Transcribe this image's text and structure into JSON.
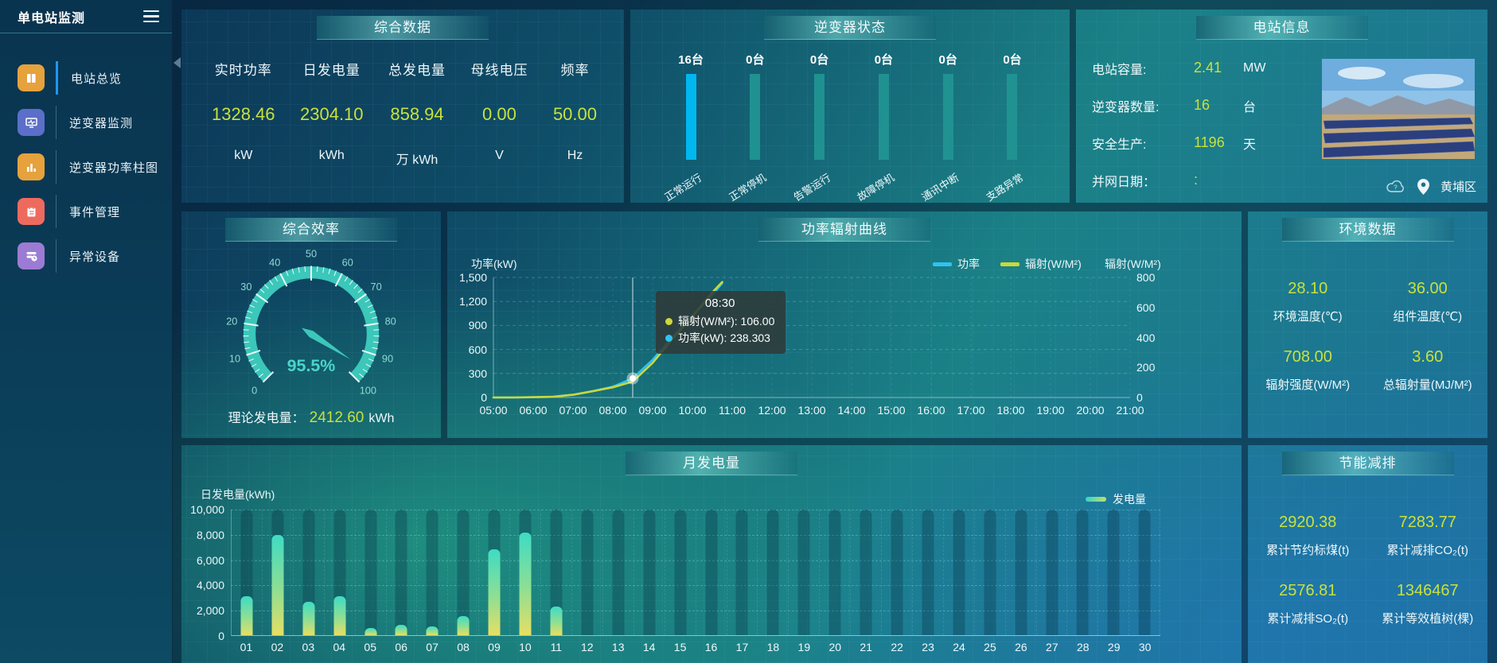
{
  "sidebar": {
    "title": "单电站监测",
    "items": [
      {
        "label": "电站总览",
        "icon": "book-icon",
        "icon_color": "#e6a23c",
        "active": true
      },
      {
        "label": "逆变器监测",
        "icon": "monitor-icon",
        "icon_color": "#5b6fc9",
        "active": false
      },
      {
        "label": "逆变器功率柱图",
        "icon": "bar-chart-icon",
        "icon_color": "#e6a23c",
        "active": false
      },
      {
        "label": "事件管理",
        "icon": "notebook-icon",
        "icon_color": "#ef6a5e",
        "active": false
      },
      {
        "label": "异常设备",
        "icon": "device-alert-icon",
        "icon_color": "#9c7bd4",
        "active": false
      }
    ]
  },
  "overview": {
    "title": "综合数据",
    "metrics": [
      {
        "label": "实时功率",
        "value": "1328.46",
        "unit": "kW"
      },
      {
        "label": "日发电量",
        "value": "2304.10",
        "unit": "kWh"
      },
      {
        "label": "总发电量",
        "value": "858.94",
        "unit": "万 kWh"
      },
      {
        "label": "母线电压",
        "value": "0.00",
        "unit": "V"
      },
      {
        "label": "频率",
        "value": "50.00",
        "unit": "Hz"
      }
    ]
  },
  "inverter_status": {
    "title": "逆变器状态",
    "items": [
      {
        "count": "16台",
        "label": "正常运行",
        "active": true
      },
      {
        "count": "0台",
        "label": "正常停机",
        "active": false
      },
      {
        "count": "0台",
        "label": "告警运行",
        "active": false
      },
      {
        "count": "0台",
        "label": "故障停机",
        "active": false
      },
      {
        "count": "0台",
        "label": "通讯中断",
        "active": false
      },
      {
        "count": "0台",
        "label": "支路异常",
        "active": false
      }
    ]
  },
  "station_info": {
    "title": "电站信息",
    "rows": [
      {
        "label": "电站容量:",
        "value": "2.41",
        "unit": "MW"
      },
      {
        "label": "逆变器数量:",
        "value": "16",
        "unit": "台"
      },
      {
        "label": "安全生产:",
        "value": "1196",
        "unit": "天"
      },
      {
        "label": "并网日期：",
        "value": ":",
        "unit": ""
      }
    ],
    "location": "黄埔区"
  },
  "efficiency": {
    "title": "综合效率",
    "footer_label": "理论发电量：",
    "footer_value": "2412.60",
    "footer_unit": "kWh"
  },
  "power_chart": {
    "title": "功率辐射曲线"
  },
  "env": {
    "title": "环境数据",
    "cells": [
      {
        "value": "28.10",
        "label": "环境温度(℃)"
      },
      {
        "value": "36.00",
        "label": "组件温度(℃)"
      },
      {
        "value": "708.00",
        "label": "辐射强度(W/M²)"
      },
      {
        "value": "3.60",
        "label": "总辐射量(MJ/M²)"
      }
    ]
  },
  "monthly": {
    "title": "月发电量"
  },
  "saving": {
    "title": "节能减排",
    "cells": [
      {
        "value": "2920.38",
        "label": "累计节约标煤(t)"
      },
      {
        "value": "7283.77",
        "label": "累计减排CO₂(t)"
      },
      {
        "value": "2576.81",
        "label": "累计减排SO₂(t)"
      },
      {
        "value": "1346467",
        "label": "累计等效植树(棵)"
      }
    ]
  },
  "colors": {
    "accent_yellow": "#c9e13c",
    "accent_blue": "#00b7f0",
    "teal": "#3bc7ba"
  },
  "chart_data": [
    {
      "type": "gauge",
      "title": "综合效率",
      "min": 0,
      "max": 100,
      "value": 95.5,
      "display": "95.5%",
      "major_ticks": [
        0,
        10,
        20,
        30,
        40,
        50,
        60,
        70,
        80,
        90,
        100
      ]
    },
    {
      "type": "line",
      "title": "功率辐射曲线",
      "x_ticks": [
        "05:00",
        "06:00",
        "07:00",
        "08:00",
        "09:00",
        "10:00",
        "11:00",
        "12:00",
        "13:00",
        "14:00",
        "15:00",
        "16:00",
        "17:00",
        "18:00",
        "19:00",
        "20:00",
        "21:00"
      ],
      "left_axis": {
        "label": "功率(kW)",
        "max": 1500,
        "ticks": [
          {
            "v": 0,
            "label": "0"
          },
          {
            "v": 300,
            "label": "300"
          },
          {
            "v": 600,
            "label": "600"
          },
          {
            "v": 900,
            "label": "900"
          },
          {
            "v": 1200,
            "label": "1,200"
          },
          {
            "v": 1500,
            "label": "1,500"
          }
        ]
      },
      "right_axis": {
        "label": "辐射(W/M²)",
        "max": 800,
        "ticks": [
          {
            "v": 0,
            "label": "0"
          },
          {
            "v": 200,
            "label": "200"
          },
          {
            "v": 400,
            "label": "400"
          },
          {
            "v": 600,
            "label": "600"
          },
          {
            "v": 800,
            "label": "800"
          }
        ]
      },
      "series": [
        {
          "name": "功率",
          "color": "#2ec3f2",
          "axis": "left",
          "points": [
            [
              "05:00",
              0
            ],
            [
              "05:30",
              1
            ],
            [
              "06:00",
              3
            ],
            [
              "06:30",
              8
            ],
            [
              "07:00",
              35
            ],
            [
              "07:30",
              80
            ],
            [
              "08:00",
              135
            ],
            [
              "08:30",
              238.3
            ],
            [
              "09:00",
              470
            ],
            [
              "09:30",
              760
            ],
            [
              "10:00",
              1020
            ],
            [
              "10:30",
              1280
            ],
            [
              "10:45",
              1430
            ]
          ]
        },
        {
          "name": "辐射(W/M²)",
          "color": "#ccd83a",
          "axis": "right",
          "points": [
            [
              "05:00",
              0
            ],
            [
              "05:30",
              0
            ],
            [
              "06:00",
              2
            ],
            [
              "06:30",
              5
            ],
            [
              "07:00",
              18
            ],
            [
              "07:30",
              42
            ],
            [
              "08:00",
              68
            ],
            [
              "08:30",
              106
            ],
            [
              "09:00",
              230
            ],
            [
              "09:30",
              390
            ],
            [
              "10:00",
              540
            ],
            [
              "10:30",
              700
            ],
            [
              "10:45",
              770
            ]
          ]
        }
      ],
      "crosshair_time": "08:30",
      "marker": {
        "time": "08:30",
        "series": "功率",
        "value": 238.3
      },
      "tooltip": {
        "title": "08:30",
        "rows": [
          {
            "color": "#ccd83a",
            "text": "辐射(W/M²): 106.00"
          },
          {
            "color": "#2ec3f2",
            "text": "功率(kW): 238.303"
          }
        ]
      }
    },
    {
      "type": "bar",
      "title": "月发电量",
      "ylabel": "日发电量(kWh)",
      "legend": "发电量",
      "ymax": 10000,
      "yticks": [
        {
          "v": 0,
          "label": "0"
        },
        {
          "v": 2000,
          "label": "2,000"
        },
        {
          "v": 4000,
          "label": "4,000"
        },
        {
          "v": 6000,
          "label": "6,000"
        },
        {
          "v": 8000,
          "label": "8,000"
        },
        {
          "v": 10000,
          "label": "10,000"
        }
      ],
      "categories": [
        "01",
        "02",
        "03",
        "04",
        "05",
        "06",
        "07",
        "08",
        "09",
        "10",
        "11",
        "12",
        "13",
        "14",
        "15",
        "16",
        "17",
        "18",
        "19",
        "20",
        "21",
        "22",
        "23",
        "24",
        "25",
        "26",
        "27",
        "28",
        "29",
        "30"
      ],
      "values": [
        3100,
        7900,
        2650,
        3080,
        550,
        800,
        700,
        1500,
        6800,
        8100,
        2250,
        0,
        0,
        0,
        0,
        0,
        0,
        0,
        0,
        0,
        0,
        0,
        0,
        0,
        0,
        0,
        0,
        0,
        0,
        0
      ]
    }
  ]
}
